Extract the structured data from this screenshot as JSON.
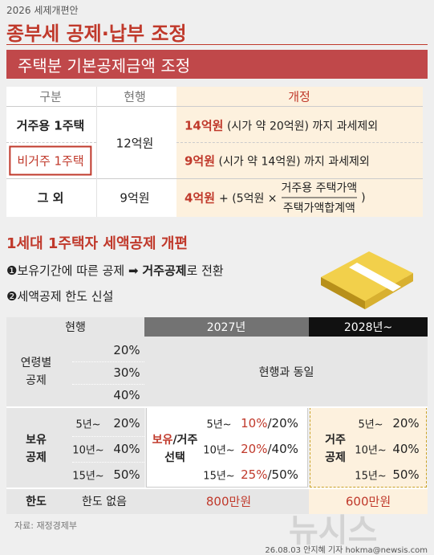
{
  "header": {
    "kicker": "2026 세제개편안",
    "title": "종부세 공제·납부 조정"
  },
  "section1": {
    "banner": "주택분 기본공제금액 조정",
    "columns": [
      "구분",
      "현행",
      "개정"
    ],
    "shared_current": "12억원",
    "rows": [
      {
        "category": "거주용 1주택",
        "amount": "14억원",
        "note": "(시가 약 20억원) 까지 과세제외"
      },
      {
        "category": "비거주 1주택",
        "amount": "9억원",
        "note": "(시가 약 14억원) 까지 과세제외"
      },
      {
        "category": "그 외",
        "current": "9억원",
        "amount": "4억원",
        "formula_start": "+ (5억원 ×",
        "numerator": "거주용 주택가액",
        "denominator": "주택가액합계액",
        "formula_end": ")"
      }
    ]
  },
  "section2": {
    "title": "1세대 1주택자 세액공제 개편",
    "bullets": [
      {
        "marker": "❶",
        "text": "보유기간에 따른 공제",
        "arrow": "➡",
        "emphasis": "거주공제",
        "tail": "로 전환"
      },
      {
        "marker": "❷",
        "text": "세액공제 한도 신설"
      }
    ],
    "table": {
      "columns": [
        "현행",
        "2027년",
        "2028년~"
      ],
      "age": {
        "label": "연령별 공제",
        "rates": [
          "20%",
          "30%",
          "40%"
        ],
        "note_2027": "현행과 동일"
      },
      "holding": {
        "label": "보유 공제",
        "periods": [
          "5년~",
          "10년~",
          "15년~"
        ],
        "current_rates": [
          "20%",
          "40%",
          "50%"
        ],
        "label_2027_holding": "보유",
        "label_2027_residence": "/거주",
        "label_2027_choice": "선택",
        "rates_2027": [
          {
            "holding": "10%",
            "residence": "/20%"
          },
          {
            "holding": "20%",
            "residence": "/40%"
          },
          {
            "holding": "25%",
            "residence": "/50%"
          }
        ],
        "label_2028": "거주 공제",
        "rates_2028": [
          "20%",
          "40%",
          "50%"
        ]
      },
      "limit": {
        "label": "한도",
        "current": "한도 없음",
        "y2027": "800만원",
        "y2028": "600만원"
      }
    }
  },
  "footer": {
    "source": "자료: 재정경제부",
    "credit": "26.08.03 안지혜 기자 hokma@newsis.com",
    "watermark": "뉴시스"
  }
}
